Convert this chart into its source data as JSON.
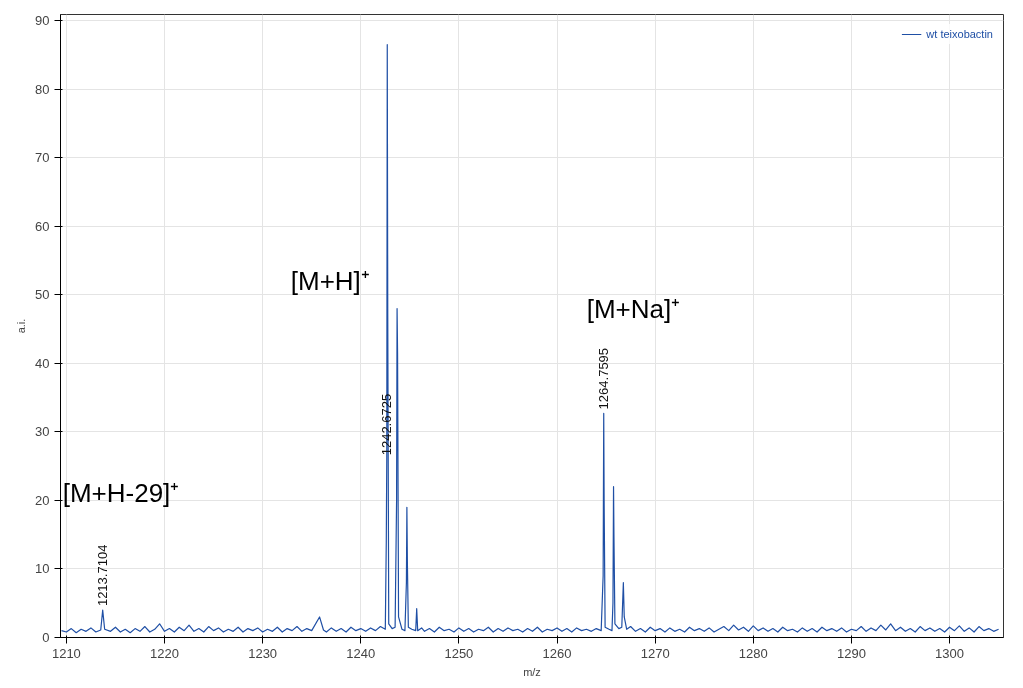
{
  "chart_data": {
    "type": "line",
    "xlabel": "m/z",
    "ylabel": "a.i.",
    "xlim": [
      1209.4,
      1305.5
    ],
    "ylim": [
      0,
      90.9
    ],
    "xticks": [
      1210,
      1220,
      1230,
      1240,
      1250,
      1260,
      1270,
      1280,
      1290,
      1300
    ],
    "yticks": [
      0,
      10,
      20,
      30,
      40,
      50,
      60,
      70,
      80,
      90
    ],
    "grid": true,
    "legend": "top right",
    "marker": "none",
    "line_style": "solid",
    "x": [
      1209.5,
      1210,
      1210.5,
      1211,
      1211.5,
      1212,
      1212.5,
      1213,
      1213.5,
      1213.7,
      1213.9,
      1214.5,
      1215,
      1215.5,
      1216,
      1216.5,
      1217,
      1217.5,
      1218,
      1218.5,
      1219,
      1219.5,
      1220,
      1220.5,
      1221,
      1221.5,
      1222,
      1222.5,
      1223,
      1223.5,
      1224,
      1224.5,
      1225,
      1225.5,
      1226,
      1226.5,
      1227,
      1227.5,
      1228,
      1228.5,
      1229,
      1229.5,
      1230,
      1230.5,
      1231,
      1231.5,
      1232,
      1232.5,
      1233,
      1233.5,
      1234,
      1234.5,
      1235,
      1235.8,
      1236.2,
      1236.5,
      1237,
      1237.5,
      1238,
      1238.5,
      1239,
      1239.5,
      1240,
      1240.5,
      1241,
      1241.5,
      1242,
      1242.5,
      1242.6,
      1242.65,
      1242.7,
      1242.75,
      1242.85,
      1243.2,
      1243.5,
      1243.65,
      1243.7,
      1243.75,
      1243.85,
      1244.2,
      1244.5,
      1244.65,
      1244.7,
      1244.75,
      1244.85,
      1245.2,
      1245.6,
      1245.7,
      1245.8,
      1246.2,
      1246.5,
      1247,
      1247.5,
      1248,
      1248.5,
      1249,
      1249.5,
      1250,
      1250.5,
      1251,
      1251.5,
      1252,
      1252.5,
      1253,
      1253.5,
      1254,
      1254.5,
      1255,
      1255.5,
      1256,
      1256.5,
      1257,
      1257.5,
      1258,
      1258.5,
      1259,
      1259.5,
      1260,
      1260.5,
      1261,
      1261.5,
      1262,
      1262.5,
      1263,
      1263.5,
      1264,
      1264.5,
      1264.7,
      1264.76,
      1264.8,
      1264.9,
      1265.3,
      1265.6,
      1265.7,
      1265.76,
      1265.8,
      1265.9,
      1266.3,
      1266.6,
      1266.76,
      1266.85,
      1267.1,
      1267.5,
      1268,
      1268.5,
      1269,
      1269.5,
      1270,
      1270.5,
      1271,
      1271.5,
      1272,
      1272.5,
      1273,
      1273.5,
      1274,
      1274.5,
      1275,
      1275.5,
      1276,
      1276.5,
      1277,
      1277.5,
      1278,
      1278.5,
      1279,
      1279.5,
      1280,
      1280.5,
      1281,
      1281.5,
      1282,
      1282.5,
      1283,
      1283.5,
      1284,
      1284.5,
      1285,
      1285.5,
      1286,
      1286.5,
      1287,
      1287.5,
      1288,
      1288.5,
      1289,
      1289.5,
      1290,
      1290.5,
      1291,
      1291.5,
      1292,
      1292.5,
      1293,
      1293.5,
      1294,
      1294.5,
      1295,
      1295.5,
      1296,
      1296.5,
      1297,
      1297.5,
      1298,
      1298.5,
      1299,
      1299.5,
      1300,
      1300.5,
      1301,
      1301.5,
      1302,
      1302.5,
      1303,
      1303.5,
      1304,
      1304.5,
      1305
    ],
    "series": [
      {
        "name": "wt teixobactin",
        "color": "#1f4fa5",
        "values": [
          1.0,
          0.8,
          1.3,
          0.7,
          1.2,
          0.9,
          1.4,
          0.8,
          1.1,
          4.0,
          1.2,
          0.9,
          1.5,
          0.8,
          1.2,
          0.7,
          1.3,
          0.9,
          1.6,
          0.8,
          1.2,
          2.0,
          0.9,
          1.3,
          0.8,
          1.5,
          1.0,
          1.8,
          0.9,
          1.3,
          0.8,
          1.6,
          1.0,
          1.4,
          0.8,
          1.2,
          0.9,
          1.5,
          0.8,
          1.3,
          1.0,
          1.4,
          0.8,
          1.2,
          0.9,
          1.5,
          0.8,
          1.3,
          1.0,
          1.6,
          0.9,
          1.3,
          1.0,
          3.0,
          1.1,
          0.8,
          1.4,
          0.9,
          1.3,
          0.8,
          1.5,
          1.0,
          1.3,
          0.9,
          1.4,
          1.0,
          1.6,
          1.2,
          14,
          26,
          86.5,
          47,
          2,
          1.3,
          1.5,
          20,
          48,
          41.5,
          3,
          1.2,
          1.0,
          8,
          19,
          11,
          1.5,
          1.2,
          1.0,
          4.2,
          1.0,
          1.4,
          0.9,
          1.3,
          0.8,
          1.5,
          1.0,
          1.2,
          0.8,
          1.4,
          0.9,
          1.3,
          0.8,
          1.2,
          1.0,
          1.5,
          0.8,
          1.3,
          0.9,
          1.4,
          1.0,
          1.2,
          0.8,
          1.3,
          0.9,
          1.5,
          0.8,
          1.2,
          1.0,
          1.4,
          0.9,
          1.3,
          0.8,
          1.4,
          1.0,
          1.2,
          0.9,
          1.3,
          1.0,
          9,
          32.7,
          20,
          1.5,
          1.2,
          1.0,
          5,
          22,
          15,
          2,
          1.3,
          1.5,
          8,
          3,
          1.2,
          1.6,
          0.9,
          1.3,
          0.8,
          1.5,
          1.0,
          1.3,
          0.8,
          1.4,
          0.9,
          1.2,
          0.8,
          1.5,
          1.0,
          1.3,
          0.9,
          1.4,
          0.8,
          1.2,
          1.6,
          1.0,
          1.8,
          1.1,
          1.5,
          0.9,
          1.7,
          1.0,
          1.4,
          0.9,
          1.3,
          0.8,
          1.5,
          1.0,
          1.2,
          0.8,
          1.4,
          0.9,
          1.3,
          0.8,
          1.5,
          1.0,
          1.3,
          0.9,
          1.4,
          0.8,
          1.2,
          1.0,
          1.6,
          0.9,
          1.4,
          1.0,
          1.8,
          1.1,
          2.0,
          1.0,
          1.5,
          0.9,
          1.3,
          0.8,
          1.6,
          1.0,
          1.4,
          0.9,
          1.3,
          0.8,
          1.5,
          1.0,
          1.7,
          0.9,
          1.4,
          0.8,
          1.6,
          1.0,
          1.3,
          0.9,
          1.2
        ]
      }
    ],
    "annotations": [
      {
        "text": "1213.7104",
        "x": 1213.7,
        "y": 4.0
      },
      {
        "text": "1242.6725",
        "x": 1242.65,
        "y": 26
      },
      {
        "text": "1264.7595",
        "x": 1264.76,
        "y": 32.7
      },
      "[M+H-29]⁺",
      "[M+H]⁺",
      "[M+Na]⁺"
    ]
  }
}
